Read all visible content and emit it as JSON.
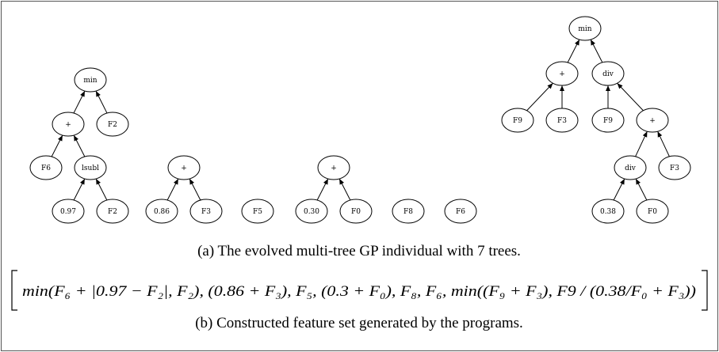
{
  "nodes": [
    {
      "label": "min"
    },
    {
      "label": "+"
    },
    {
      "label": "F2"
    },
    {
      "label": "F6"
    },
    {
      "label": "lsubl"
    },
    {
      "label": "0.97"
    },
    {
      "label": "F2"
    },
    {
      "label": "+"
    },
    {
      "label": "0.86"
    },
    {
      "label": "F3"
    },
    {
      "label": "F5"
    },
    {
      "label": "+"
    },
    {
      "label": "0.30"
    },
    {
      "label": "F0"
    },
    {
      "label": "F8"
    },
    {
      "label": "F6"
    },
    {
      "label": "min"
    },
    {
      "label": "+"
    },
    {
      "label": "div"
    },
    {
      "label": "F9"
    },
    {
      "label": "F3"
    },
    {
      "label": "F9"
    },
    {
      "label": "+"
    },
    {
      "label": "div"
    },
    {
      "label": "F3"
    },
    {
      "label": "0.38"
    },
    {
      "label": "F0"
    }
  ],
  "caption_a": "(a) The evolved multi-tree GP individual with 7 trees.",
  "formula": "min(F₆ + |0.97 − F₂|, F₂), (0.86 + F₃), F₅, (0.3 + F₀), F₈, F₆, min((F₉ + F₃), F9 / (0.38/F₀ + F₃))",
  "caption_b": "(b) Constructed feature set generated by the programs."
}
